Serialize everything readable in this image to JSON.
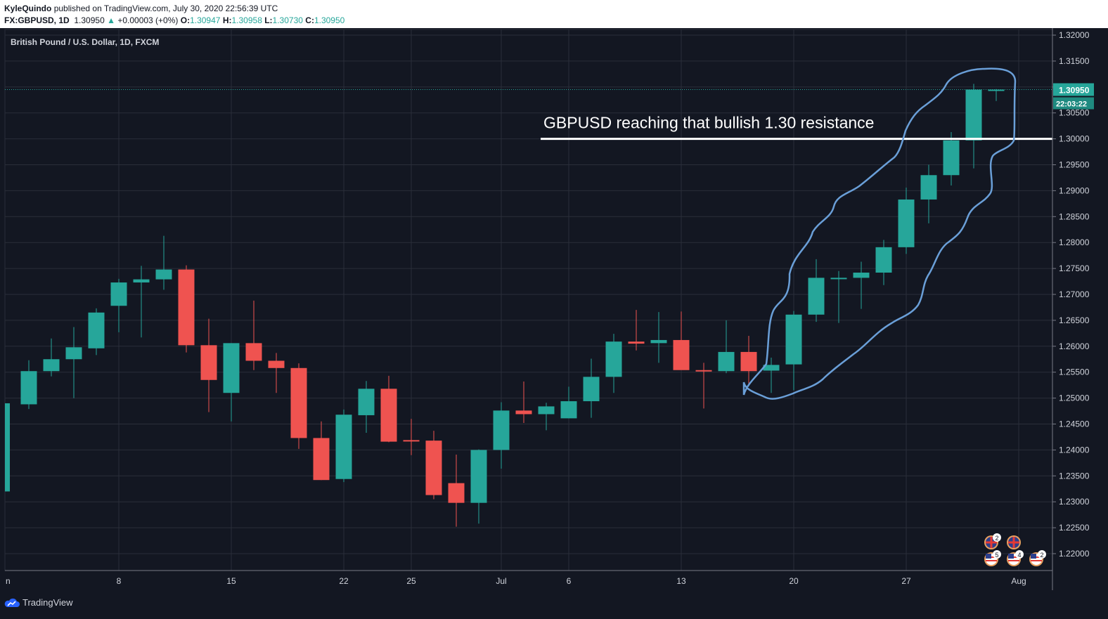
{
  "header": {
    "author": "KyleQuindo",
    "published_text": "published on TradingView.com, July 30, 2020 22:56:39 UTC",
    "symbol": "FX:GBPUSD, 1D",
    "last_price": "1.30950",
    "change_arrow": "▲",
    "change": "+0.00003 (+0%)",
    "open_label": "O:",
    "open": "1.30947",
    "high_label": "H:",
    "high": "1.30958",
    "low_label": "L:",
    "low": "1.30730",
    "close_label": "C:",
    "close": "1.30950"
  },
  "chart_title": "British Pound / U.S. Dollar, 1D, FXCM",
  "annotation": {
    "text": "GBPUSD reaching that bullish 1.30 resistance",
    "level": 1.3
  },
  "price_badge": {
    "price": "1.30950",
    "countdown": "22:03:22"
  },
  "event_badges": [
    "2",
    "5",
    "4",
    "2"
  ],
  "footer": {
    "brand": "TradingView"
  },
  "colors": {
    "up": "#26a69a",
    "down": "#ef5350",
    "background": "#131722",
    "grid": "#2a2e39",
    "highlight": "#6a9fd8"
  },
  "chart_data": {
    "type": "candlestick",
    "title": "British Pound / U.S. Dollar, 1D, FXCM",
    "ylim": [
      1.2175,
      1.3225
    ],
    "yticks": [
      "1.32000",
      "1.31500",
      "1.31000",
      "1.30500",
      "1.30000",
      "1.29500",
      "1.29000",
      "1.28500",
      "1.28000",
      "1.27500",
      "1.27000",
      "1.26500",
      "1.26000",
      "1.25500",
      "1.25000",
      "1.24500",
      "1.24000",
      "1.23500",
      "1.23000",
      "1.22500",
      "1.22000"
    ],
    "xticks": [
      {
        "label": "n",
        "index": 0
      },
      {
        "label": "8",
        "index": 5
      },
      {
        "label": "15",
        "index": 10
      },
      {
        "label": "22",
        "index": 15
      },
      {
        "label": "25",
        "index": 18
      },
      {
        "label": "Jul",
        "index": 22
      },
      {
        "label": "6",
        "index": 25
      },
      {
        "label": "13",
        "index": 30
      },
      {
        "label": "20",
        "index": 35
      },
      {
        "label": "27",
        "index": 40
      },
      {
        "label": "Aug",
        "index": 45
      }
    ],
    "candles": [
      {
        "o": 1.232,
        "h": 1.249,
        "l": 1.232,
        "c": 1.249
      },
      {
        "o": 1.2488,
        "h": 1.2573,
        "l": 1.2479,
        "c": 1.2552
      },
      {
        "o": 1.2552,
        "h": 1.2615,
        "l": 1.2542,
        "c": 1.2575
      },
      {
        "o": 1.2575,
        "h": 1.2637,
        "l": 1.25,
        "c": 1.2598
      },
      {
        "o": 1.2596,
        "h": 1.2673,
        "l": 1.2583,
        "c": 1.2665
      },
      {
        "o": 1.2678,
        "h": 1.273,
        "l": 1.2627,
        "c": 1.2723
      },
      {
        "o": 1.2723,
        "h": 1.2755,
        "l": 1.2617,
        "c": 1.2729
      },
      {
        "o": 1.2729,
        "h": 1.2813,
        "l": 1.2709,
        "c": 1.2748
      },
      {
        "o": 1.2748,
        "h": 1.2756,
        "l": 1.2588,
        "c": 1.2602
      },
      {
        "o": 1.2602,
        "h": 1.2653,
        "l": 1.2473,
        "c": 1.2535
      },
      {
        "o": 1.251,
        "h": 1.2606,
        "l": 1.2455,
        "c": 1.2606
      },
      {
        "o": 1.2606,
        "h": 1.2688,
        "l": 1.2554,
        "c": 1.2572
      },
      {
        "o": 1.2572,
        "h": 1.2587,
        "l": 1.251,
        "c": 1.2558
      },
      {
        "o": 1.2558,
        "h": 1.2567,
        "l": 1.2402,
        "c": 1.2423
      },
      {
        "o": 1.2423,
        "h": 1.2455,
        "l": 1.2342,
        "c": 1.2342
      },
      {
        "o": 1.2344,
        "h": 1.2478,
        "l": 1.2338,
        "c": 1.2468
      },
      {
        "o": 1.2467,
        "h": 1.2533,
        "l": 1.2433,
        "c": 1.2518
      },
      {
        "o": 1.2518,
        "h": 1.2543,
        "l": 1.2415,
        "c": 1.2416
      },
      {
        "o": 1.2419,
        "h": 1.246,
        "l": 1.239,
        "c": 1.2417
      },
      {
        "o": 1.2418,
        "h": 1.2437,
        "l": 1.2305,
        "c": 1.2313
      },
      {
        "o": 1.2336,
        "h": 1.2391,
        "l": 1.2252,
        "c": 1.2298
      },
      {
        "o": 1.2298,
        "h": 1.2401,
        "l": 1.2258,
        "c": 1.24
      },
      {
        "o": 1.24,
        "h": 1.2492,
        "l": 1.2364,
        "c": 1.2476
      },
      {
        "o": 1.2476,
        "h": 1.2532,
        "l": 1.2452,
        "c": 1.2469
      },
      {
        "o": 1.2469,
        "h": 1.2491,
        "l": 1.2438,
        "c": 1.2484
      },
      {
        "o": 1.2461,
        "h": 1.2522,
        "l": 1.2461,
        "c": 1.2494
      },
      {
        "o": 1.2494,
        "h": 1.2576,
        "l": 1.2462,
        "c": 1.2541
      },
      {
        "o": 1.2541,
        "h": 1.2624,
        "l": 1.251,
        "c": 1.2609
      },
      {
        "o": 1.2609,
        "h": 1.267,
        "l": 1.2592,
        "c": 1.2605
      },
      {
        "o": 1.2606,
        "h": 1.2666,
        "l": 1.2568,
        "c": 1.2612
      },
      {
        "o": 1.2612,
        "h": 1.2667,
        "l": 1.2555,
        "c": 1.2554
      },
      {
        "o": 1.2554,
        "h": 1.2568,
        "l": 1.248,
        "c": 1.2553
      },
      {
        "o": 1.2552,
        "h": 1.265,
        "l": 1.2548,
        "c": 1.2589
      },
      {
        "o": 1.2589,
        "h": 1.262,
        "l": 1.2528,
        "c": 1.2552
      },
      {
        "o": 1.2553,
        "h": 1.2578,
        "l": 1.251,
        "c": 1.2564
      },
      {
        "o": 1.2565,
        "h": 1.2668,
        "l": 1.2515,
        "c": 1.2661
      },
      {
        "o": 1.2661,
        "h": 1.2768,
        "l": 1.2647,
        "c": 1.2732
      },
      {
        "o": 1.273,
        "h": 1.2745,
        "l": 1.2645,
        "c": 1.2732
      },
      {
        "o": 1.2732,
        "h": 1.2763,
        "l": 1.2672,
        "c": 1.2742
      },
      {
        "o": 1.2742,
        "h": 1.2805,
        "l": 1.2718,
        "c": 1.2791
      },
      {
        "o": 1.2791,
        "h": 1.2906,
        "l": 1.2778,
        "c": 1.2883
      },
      {
        "o": 1.2883,
        "h": 1.295,
        "l": 1.2837,
        "c": 1.293
      },
      {
        "o": 1.293,
        "h": 1.3013,
        "l": 1.291,
        "c": 1.2997
      },
      {
        "o": 1.2997,
        "h": 1.3106,
        "l": 1.2943,
        "c": 1.3095
      },
      {
        "o": 1.3095,
        "h": 1.3096,
        "l": 1.3073,
        "c": 1.3095
      }
    ]
  }
}
